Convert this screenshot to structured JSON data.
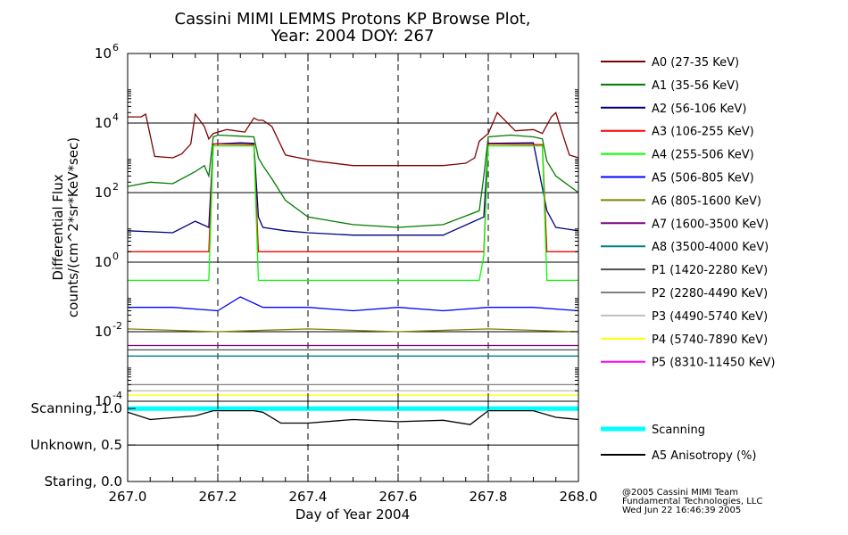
{
  "chart_data": {
    "type": "line",
    "title": [
      "Cassini MIMI LEMMS Protons KP Browse Plot,",
      "Year: 2004 DOY: 267"
    ],
    "xlabel": "Day of Year 2004",
    "ylabel": [
      "Differential Flux",
      "counts/(cm^2*sr*KeV*sec)"
    ],
    "xlim": [
      267.0,
      268.0
    ],
    "x_ticks": [
      "267.0",
      "267.2",
      "267.4",
      "267.6",
      "267.8",
      "268.0"
    ],
    "flux_panel": {
      "y_scale": "log",
      "ylim": [
        0.0001,
        1000000
      ],
      "y_ticks": [
        {
          "value": 0.0001,
          "mant": "10",
          "exp": "-4"
        },
        {
          "value": 0.01,
          "mant": "10",
          "exp": "-2"
        },
        {
          "value": 1,
          "mant": "10",
          "exp": "0"
        },
        {
          "value": 100,
          "mant": "10",
          "exp": "2"
        },
        {
          "value": 10000,
          "mant": "10",
          "exp": "4"
        },
        {
          "value": 1000000,
          "mant": "10",
          "exp": "6"
        }
      ],
      "dashed_vlines": [
        267.2,
        267.4,
        267.6,
        267.8
      ]
    },
    "mode_panel": {
      "ylim": [
        0.0,
        1.1
      ],
      "y_ticks": [
        {
          "value": 1.0,
          "label": "Scanning, 1.0"
        },
        {
          "value": 0.5,
          "label": "Unknown, 0.5"
        },
        {
          "value": 0.0,
          "label": "Staring, 0.0"
        }
      ]
    },
    "series": [
      {
        "name": "A0 (27-35 KeV)",
        "color": "#800000",
        "x": [
          267.0,
          267.03,
          267.04,
          267.06,
          267.1,
          267.12,
          267.14,
          267.15,
          267.17,
          267.18,
          267.19,
          267.22,
          267.26,
          267.28,
          267.29,
          267.3,
          267.32,
          267.35,
          267.38,
          267.42,
          267.5,
          267.6,
          267.7,
          267.75,
          267.77,
          267.78,
          267.8,
          267.82,
          267.86,
          267.9,
          267.92,
          267.94,
          267.95,
          267.97,
          267.98,
          268.0
        ],
        "y": [
          15000,
          15000,
          18000,
          1100,
          1000,
          1300,
          2500,
          18000,
          8000,
          3500,
          5000,
          6500,
          5500,
          14000,
          12000,
          12000,
          8000,
          1200,
          1000,
          800,
          600,
          600,
          600,
          700,
          1000,
          3000,
          5000,
          20000,
          6000,
          6500,
          5000,
          15000,
          20000,
          3000,
          1200,
          1000
        ]
      },
      {
        "name": "A1 (35-56 KeV)",
        "color": "#007a00",
        "x": [
          267.0,
          267.05,
          267.1,
          267.15,
          267.17,
          267.18,
          267.19,
          267.2,
          267.25,
          267.28,
          267.29,
          267.3,
          267.32,
          267.35,
          267.4,
          267.5,
          267.6,
          267.7,
          267.78,
          267.79,
          267.8,
          267.85,
          267.9,
          267.92,
          267.93,
          267.95,
          268.0
        ],
        "y": [
          150,
          200,
          180,
          400,
          600,
          300,
          4000,
          4500,
          4200,
          4000,
          1000,
          600,
          250,
          60,
          20,
          12,
          10,
          12,
          30,
          300,
          4000,
          4500,
          4000,
          3500,
          800,
          300,
          100
        ]
      },
      {
        "name": "A2 (56-106 KeV)",
        "color": "#000080",
        "x": [
          267.0,
          267.1,
          267.15,
          267.18,
          267.19,
          267.25,
          267.28,
          267.29,
          267.3,
          267.35,
          267.4,
          267.5,
          267.6,
          267.7,
          267.79,
          267.8,
          267.9,
          267.93,
          267.95,
          268.0
        ],
        "y": [
          8,
          7,
          15,
          10,
          2500,
          2700,
          2600,
          20,
          10,
          8,
          7,
          6,
          6,
          6,
          20,
          2600,
          2700,
          30,
          10,
          8
        ]
      },
      {
        "name": "A3 (106-255 KeV)",
        "color": "#ff0000",
        "x": [
          267.0,
          267.15,
          267.18,
          267.19,
          267.28,
          267.29,
          267.5,
          267.79,
          267.8,
          267.92,
          267.93,
          268.0
        ],
        "y": [
          2,
          2,
          2,
          2500,
          2400,
          2,
          2,
          2,
          2500,
          2400,
          2,
          2
        ]
      },
      {
        "name": "A4 (255-506 KeV)",
        "color": "#00ff00",
        "x": [
          267.0,
          267.18,
          267.19,
          267.28,
          267.29,
          267.5,
          267.78,
          267.79,
          267.8,
          267.92,
          267.93,
          268.0
        ],
        "y": [
          0.3,
          0.3,
          2200,
          2200,
          0.3,
          0.3,
          0.3,
          1.5,
          2200,
          2200,
          0.3,
          0.3
        ]
      },
      {
        "name": "A5 (506-805 KeV)",
        "color": "#0000ff",
        "x": [
          267.0,
          267.1,
          267.2,
          267.25,
          267.3,
          267.4,
          267.5,
          267.6,
          267.7,
          267.8,
          267.9,
          268.0
        ],
        "y": [
          0.05,
          0.05,
          0.04,
          0.1,
          0.05,
          0.05,
          0.04,
          0.05,
          0.04,
          0.05,
          0.05,
          0.04
        ]
      },
      {
        "name": "A6 (805-1600 KeV)",
        "color": "#808000",
        "x": [
          267.0,
          267.2,
          267.4,
          267.6,
          267.8,
          268.0
        ],
        "y": [
          0.012,
          0.01,
          0.012,
          0.01,
          0.012,
          0.01
        ]
      },
      {
        "name": "A7 (1600-3500 KeV)",
        "color": "#800080",
        "x": [
          267.0,
          267.2,
          267.4,
          267.6,
          267.8,
          268.0
        ],
        "y": [
          0.004,
          0.004,
          0.004,
          0.004,
          0.004,
          0.004
        ]
      },
      {
        "name": "A8 (3500-4000 KeV)",
        "color": "#008080",
        "x": [
          267.0,
          267.5,
          268.0
        ],
        "y": [
          0.002,
          0.002,
          0.002
        ]
      },
      {
        "name": "P1 (1420-2280 KeV)",
        "color": "#505050",
        "x": [
          267.0,
          267.5,
          268.0
        ],
        "y": [
          0.003,
          0.003,
          0.003
        ]
      },
      {
        "name": "P2 (2280-4490 KeV)",
        "color": "#808080",
        "x": [
          267.0,
          267.5,
          268.0
        ],
        "y": [
          0.0003,
          0.0003,
          0.0003
        ]
      },
      {
        "name": "P3 (4490-5740 KeV)",
        "color": "#c0c0c0",
        "x": [
          267.0,
          267.5,
          268.0
        ],
        "y": [
          0.0002,
          0.0002,
          0.0002
        ]
      },
      {
        "name": "P4 (5740-7890 KeV)",
        "color": "#ffff00",
        "x": [
          267.0,
          267.5,
          268.0
        ],
        "y": [
          0.00015,
          0.00015,
          0.00015
        ]
      },
      {
        "name": "P5 (8310-11450 KeV)",
        "color": "#ff00ff",
        "x": [],
        "y": []
      }
    ],
    "mode_series": [
      {
        "name": "Scanning",
        "color": "#00ffff",
        "x": [
          267.0,
          268.0
        ],
        "y": [
          1.0,
          1.0
        ]
      },
      {
        "name": "A5 Anisotropy (%)",
        "color": "#000000",
        "x": [
          267.0,
          267.05,
          267.15,
          267.19,
          267.28,
          267.3,
          267.34,
          267.4,
          267.5,
          267.6,
          267.7,
          267.76,
          267.8,
          267.9,
          267.95,
          268.0
        ],
        "y": [
          0.95,
          0.85,
          0.9,
          0.97,
          0.97,
          0.95,
          0.8,
          0.8,
          0.85,
          0.82,
          0.84,
          0.78,
          0.97,
          0.97,
          0.88,
          0.85
        ]
      }
    ],
    "grid": "horizontal at decades; dashed vertical at major x ticks",
    "legend_placement": "right"
  },
  "credit": [
    "@2005 Cassini MIMI Team",
    "Fundamental Technologies, LLC",
    "Wed Jun 22 16:46:39 2005"
  ]
}
